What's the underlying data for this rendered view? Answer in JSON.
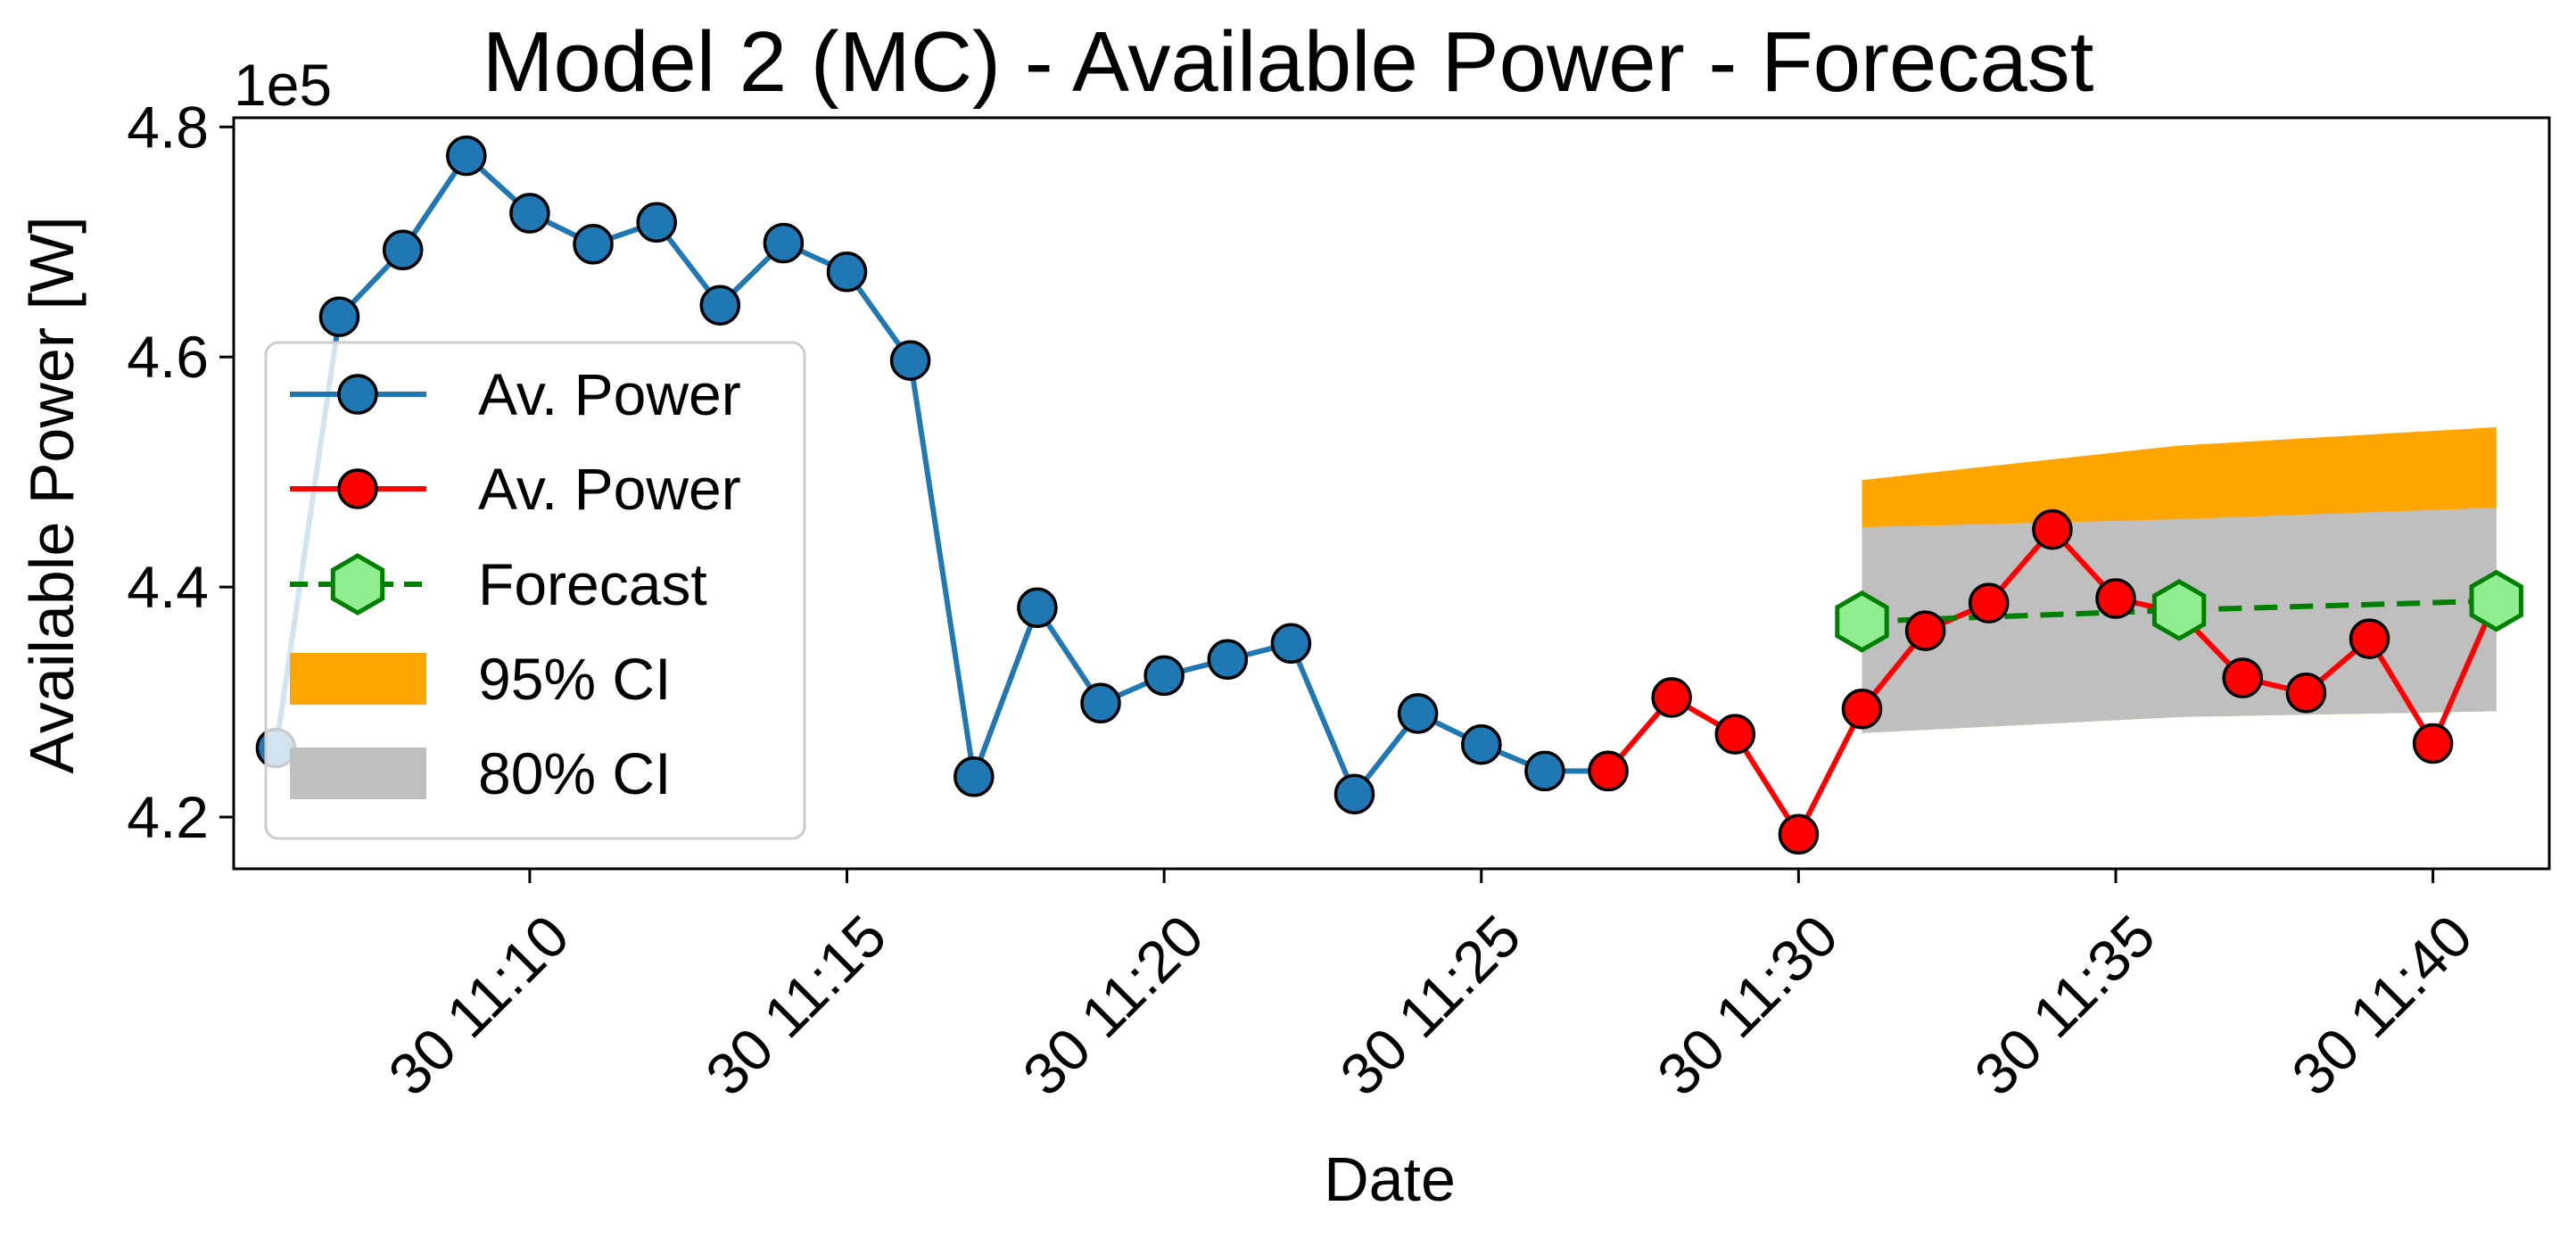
{
  "chart_data": {
    "type": "line",
    "title": "Model 2 (MC) - Available Power - Forecast",
    "xlabel": "Date",
    "ylabel": "Available Power [W]",
    "y_offset_label": "1e5",
    "y_multiplier": 100000,
    "xlim": [
      "11:05:20",
      "11:41:50"
    ],
    "ylim": [
      415500,
      480800
    ],
    "x_ticks": [
      "11:10",
      "11:15",
      "11:20",
      "11:25",
      "11:30",
      "11:35",
      "11:40"
    ],
    "x_tick_labels": [
      "30 11:10",
      "30 11:15",
      "30 11:20",
      "30 11:25",
      "30 11:30",
      "30 11:35",
      "30 11:40"
    ],
    "y_ticks": [
      420000,
      440000,
      460000,
      480000
    ],
    "y_tick_labels": [
      "4.2",
      "4.4",
      "4.6",
      "4.8"
    ],
    "legend_position": "center-left",
    "grid": false,
    "series": [
      {
        "name": "Av. Power",
        "kind": "line-marker",
        "color": "#1f77b4",
        "x": [
          "11:06",
          "11:07",
          "11:08",
          "11:09",
          "11:10",
          "11:11",
          "11:12",
          "11:13",
          "11:14",
          "11:15",
          "11:16",
          "11:17",
          "11:18",
          "11:19",
          "11:20",
          "11:21",
          "11:22",
          "11:23",
          "11:24",
          "11:25",
          "11:26",
          "11:27"
        ],
        "values": [
          426000,
          463500,
          469300,
          477500,
          472500,
          469800,
          471700,
          464500,
          469900,
          467400,
          459700,
          423500,
          438200,
          429900,
          432300,
          433700,
          435100,
          422000,
          429000,
          426300,
          424000,
          424000
        ]
      },
      {
        "name": "Av. Power",
        "kind": "line-marker",
        "color": "#ff0000",
        "x": [
          "11:27",
          "11:28",
          "11:29",
          "11:30",
          "11:31",
          "11:32",
          "11:33",
          "11:34",
          "11:35",
          "11:36",
          "11:37",
          "11:38",
          "11:39",
          "11:40",
          "11:41"
        ],
        "values": [
          424000,
          430400,
          427200,
          418500,
          429400,
          436200,
          438600,
          445000,
          439000,
          437800,
          432100,
          430800,
          435500,
          426400,
          439000
        ]
      },
      {
        "name": "Forecast",
        "kind": "dashed-hexagon",
        "color": "#008000",
        "marker_fill": "#90ee90",
        "x": [
          "11:31",
          "11:36",
          "11:41"
        ],
        "values": [
          437000,
          438000,
          438800
        ]
      }
    ],
    "bands": [
      {
        "name": "95% CI",
        "color": "#ffa500",
        "x": [
          "11:31",
          "11:36",
          "11:41"
        ],
        "lower": [
          427300,
          428700,
          429200
        ],
        "upper": [
          449300,
          452300,
          453900
        ]
      },
      {
        "name": "80% CI",
        "color": "#bfbfbf",
        "x": [
          "11:31",
          "11:36",
          "11:41"
        ],
        "lower": [
          427300,
          428700,
          429200
        ],
        "upper": [
          445200,
          445900,
          446900
        ]
      }
    ]
  }
}
